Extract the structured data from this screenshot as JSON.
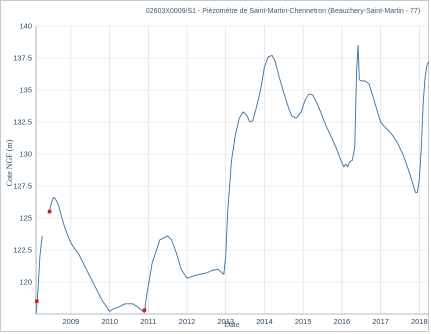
{
  "chart_data": {
    "type": "line",
    "title": "02603X0009/S1 - Piézomètre de Saint-Martin-Chennetron (Beauchery-Saint-Martin - 77)",
    "xlabel": "Date",
    "ylabel": "Cote NGF (m)",
    "xlim": [
      2008.1,
      2018.25
    ],
    "ylim": [
      117.5,
      140
    ],
    "x_ticks": [
      "2009",
      "2010",
      "2011",
      "2012",
      "2013",
      "2014",
      "2015",
      "2016",
      "2017",
      "2018"
    ],
    "y_ticks": [
      "120",
      "122.5",
      "125",
      "127.5",
      "130",
      "132.5",
      "135",
      "137.5",
      "140"
    ],
    "grid": true,
    "series": [
      {
        "color": "#3d6f9a",
        "x": [
          2008.1,
          2008.13,
          2008.16,
          2008.2,
          2008.26,
          2008.3,
          2008.33,
          2008.45,
          2008.5,
          2008.55,
          2008.6,
          2008.68,
          2008.75,
          2008.85,
          2008.95,
          2009.05,
          2009.2,
          2009.4,
          2009.6,
          2009.8,
          2010.0,
          2010.1,
          2010.2,
          2010.4,
          2010.6,
          2010.75,
          2010.9,
          2010.95,
          2011.1,
          2011.3,
          2011.5,
          2011.6,
          2011.7,
          2011.85,
          2012.0,
          2012.2,
          2012.5,
          2012.65,
          2012.8,
          2012.95,
          2013.0,
          2013.05,
          2013.15,
          2013.25,
          2013.35,
          2013.45,
          2013.55,
          2013.62,
          2013.7,
          2013.78,
          2013.9,
          2014.0,
          2014.1,
          2014.2,
          2014.28,
          2014.38,
          2014.5,
          2014.6,
          2014.7,
          2014.82,
          2014.95,
          2015.05,
          2015.15,
          2015.25,
          2015.35,
          2015.45,
          2015.55,
          2015.62,
          2015.7,
          2015.85,
          2016.0,
          2016.05,
          2016.1,
          2016.15,
          2016.2,
          2016.27,
          2016.33,
          2016.38,
          2016.42,
          2016.45,
          2016.5,
          2016.6,
          2016.7,
          2016.8,
          2016.9,
          2017.0,
          2017.08,
          2017.15,
          2017.3,
          2017.45,
          2017.6,
          2017.75,
          2017.85,
          2017.9,
          2017.95,
          2018.0,
          2018.05,
          2018.1,
          2018.15,
          2018.2,
          2018.25
        ],
        "y": [
          117.5,
          118.5,
          119.8,
          122.0,
          123.6,
          null,
          null,
          125.6,
          126.2,
          126.6,
          126.5,
          126.0,
          125.2,
          124.2,
          123.4,
          122.8,
          122.2,
          121.0,
          119.8,
          118.6,
          117.7,
          117.9,
          118.0,
          118.3,
          118.3,
          118.0,
          117.6,
          118.8,
          121.5,
          123.3,
          123.6,
          123.3,
          122.5,
          121.0,
          120.3,
          120.5,
          120.7,
          120.9,
          121.0,
          120.6,
          122.0,
          125.5,
          129.5,
          131.5,
          132.8,
          133.3,
          133.0,
          132.5,
          132.6,
          133.5,
          135.0,
          136.8,
          137.6,
          137.7,
          137.2,
          136.0,
          134.8,
          133.8,
          133.0,
          132.8,
          133.3,
          134.2,
          134.7,
          134.6,
          134.0,
          133.3,
          132.5,
          132.0,
          131.5,
          130.5,
          129.3,
          129.0,
          129.2,
          129.0,
          129.4,
          129.5,
          130.5,
          136.5,
          138.5,
          135.8,
          135.7,
          135.7,
          135.5,
          134.5,
          133.5,
          132.5,
          132.2,
          132.0,
          131.5,
          130.8,
          129.8,
          128.5,
          127.5,
          127.0,
          127.0,
          128.0,
          130.5,
          134.0,
          136.0,
          137.0,
          137.2
        ]
      }
    ],
    "markers": {
      "color": "#cc2222",
      "points": [
        {
          "x": 2008.12,
          "y": 118.5
        },
        {
          "x": 2008.45,
          "y": 125.5
        },
        {
          "x": 2010.9,
          "y": 117.8
        }
      ]
    }
  }
}
